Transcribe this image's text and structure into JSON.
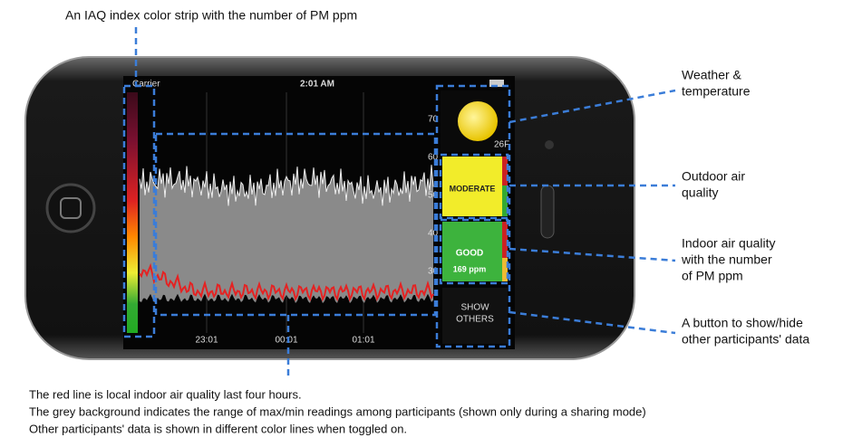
{
  "annotations": {
    "strip": "An  IAQ index color strip with the number of PM ppm",
    "weather": [
      "Weather &",
      "temperature"
    ],
    "outdoor": [
      "Outdoor air",
      "quality"
    ],
    "indoor": [
      "Indoor air quality",
      "with the number",
      "of PM ppm"
    ],
    "button": [
      "A button to show/hide",
      "other participants' data"
    ]
  },
  "caption": [
    "The red line is local indoor air quality last four hours.",
    "The grey background indicates the range of max/min readings among participants (shown only during a sharing mode)",
    "Other participants' data is shown in different color lines when toggled on."
  ],
  "phone": {
    "carrier": "Carrier",
    "time": "2:01 AM",
    "temperature": "26F",
    "outdoor_label": "MODERATE",
    "indoor_label": "GOOD",
    "indoor_ppm": "169 ppm",
    "button": [
      "SHOW",
      "OTHERS"
    ],
    "x_labels": [
      "23:01",
      "00:01",
      "01:01"
    ],
    "y_labels": [
      "70",
      "60",
      "50",
      "40",
      "30"
    ]
  }
}
